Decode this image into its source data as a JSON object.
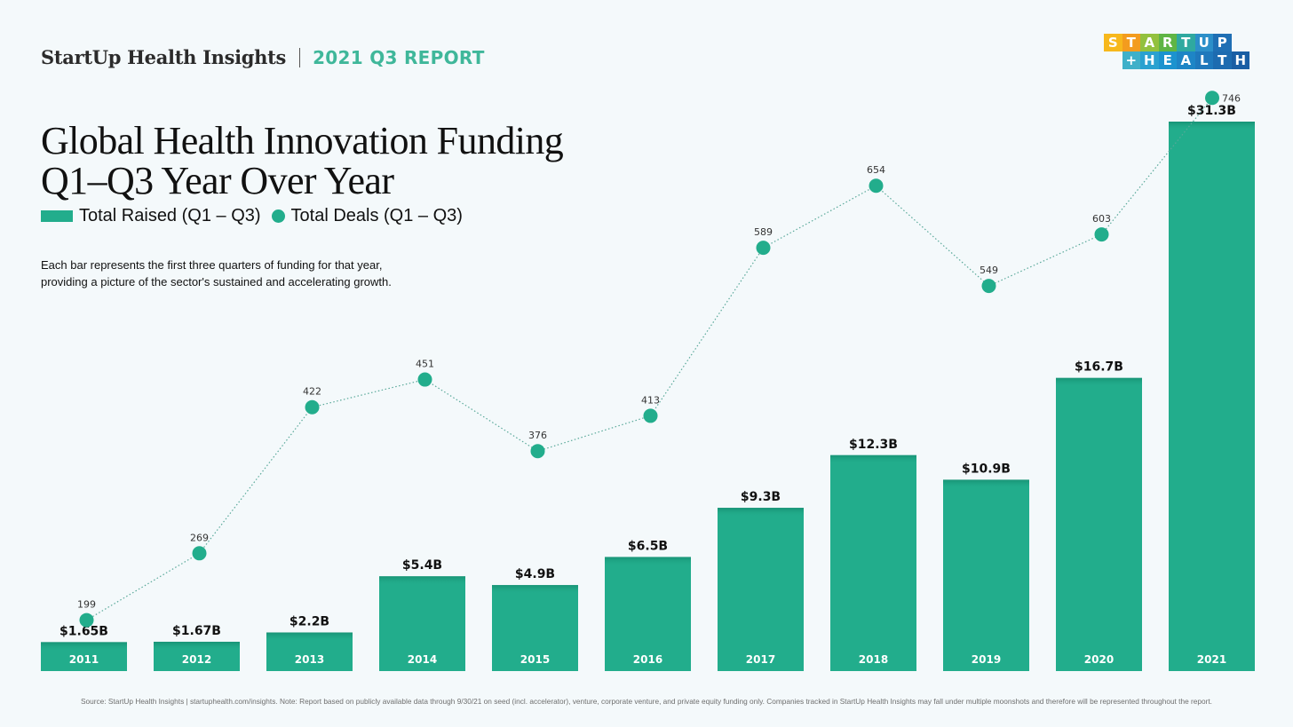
{
  "header": {
    "brand": "StartUp Health Insights",
    "report": "2021 Q3 REPORT"
  },
  "logo": {
    "row1": [
      "S",
      "T",
      "A",
      "R",
      "T",
      "U",
      "P"
    ],
    "row2": [
      "+",
      "H",
      "E",
      "A",
      "L",
      "T",
      "H"
    ],
    "row1_colors": [
      "#f7b81c",
      "#f39c1e",
      "#93c13e",
      "#5fb545",
      "#2fa9a0",
      "#2c8fc9",
      "#1f6fb4"
    ],
    "row2_colors": [
      "#3fb0c9",
      "#2aa1d0",
      "#1c93cf",
      "#1e85c6",
      "#1f78bc",
      "#1d6bb0",
      "#1a5ea4"
    ]
  },
  "title_lines": [
    "Global Health Innovation Funding",
    "Q1–Q3 Year Over Year"
  ],
  "legend": {
    "bars": "Total Raised (Q1 – Q3)",
    "dots": "Total Deals (Q1 – Q3)"
  },
  "description_lines": [
    "Each bar represents the first three quarters of funding for that year,",
    "providing a picture of the sector's sustained and accelerating growth."
  ],
  "source": "Source: StartUp Health Insights | startuphealth.com/insights. Note: Report based on publicly available data through 9/30/21 on seed (incl. accelerator), venture, corporate venture, and private equity funding only. Companies tracked in StartUp Health Insights may fall under multiple moonshots and therefore will be represented throughout the report.",
  "colors": {
    "bar": "#22ad8c",
    "dot": "#22ad8c",
    "line": "#5aa99a",
    "accent": "#3fb79a"
  },
  "chart_data": {
    "type": "bar",
    "categories": [
      "2011",
      "2012",
      "2013",
      "2014",
      "2015",
      "2016",
      "2017",
      "2018",
      "2019",
      "2020",
      "2021"
    ],
    "series": [
      {
        "name": "Total Raised (Q1 – Q3)",
        "type": "bar",
        "values": [
          1.65,
          1.67,
          2.2,
          5.4,
          4.9,
          6.5,
          9.3,
          12.3,
          10.9,
          16.7,
          31.3
        ],
        "labels": [
          "$1.65B",
          "$1.67B",
          "$2.2B",
          "$5.4B",
          "$4.9B",
          "$6.5B",
          "$9.3B",
          "$12.3B",
          "$10.9B",
          "$16.7B",
          "$31.3B"
        ]
      },
      {
        "name": "Total Deals (Q1 – Q3)",
        "type": "line",
        "values": [
          199,
          269,
          422,
          451,
          376,
          413,
          589,
          654,
          549,
          603,
          746
        ]
      }
    ],
    "ylim_bars": [
      0,
      31.3
    ],
    "ylim_deals": [
      0,
      746
    ],
    "grid": false,
    "legend_position": "top-left"
  }
}
